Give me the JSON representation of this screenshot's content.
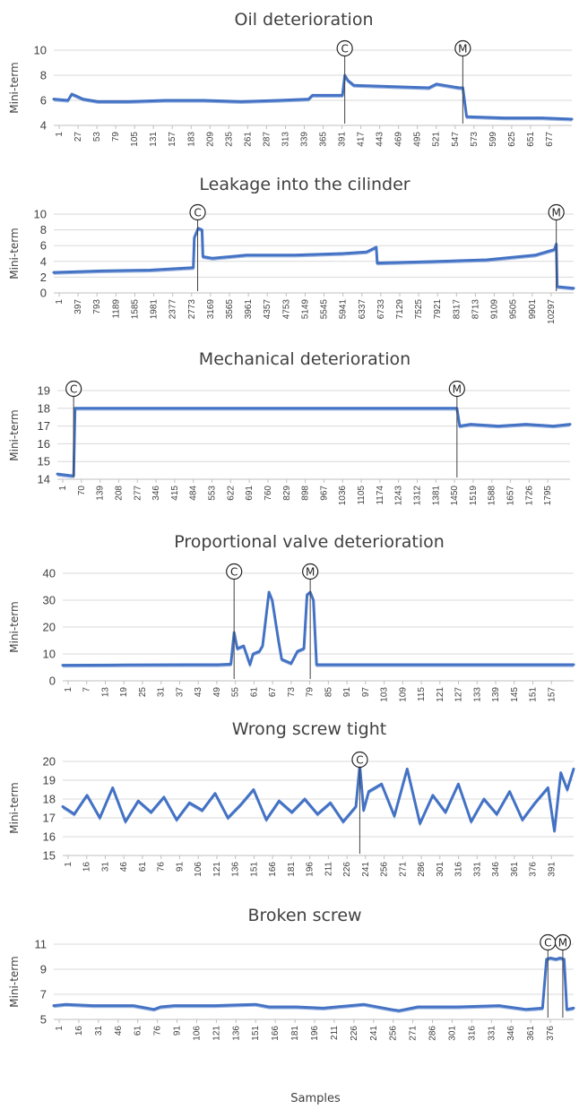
{
  "figure": {
    "x_axis_label": "Samples"
  },
  "chart_data": [
    {
      "type": "line",
      "title": "Oil deterioration",
      "ylabel": "Mini-term",
      "xlabel": "",
      "ylim": [
        4,
        10
      ],
      "yticks": [
        "4",
        "6",
        "8",
        "10"
      ],
      "x_range": [
        1,
        690
      ],
      "x_ticks": [
        "1",
        "27",
        "53",
        "79",
        "105",
        "131",
        "157",
        "183",
        "209",
        "235",
        "261",
        "287",
        "313",
        "339",
        "365",
        "391",
        "417",
        "443",
        "469",
        "495",
        "521",
        "547",
        "573",
        "599",
        "625",
        "651",
        "677"
      ],
      "grid": true,
      "series": [
        {
          "color": "#4472c4",
          "x": [
            1,
            20,
            25,
            40,
            60,
            100,
            150,
            200,
            250,
            300,
            340,
            345,
            385,
            388,
            392,
            400,
            450,
            500,
            510,
            540,
            545,
            550,
            600,
            650,
            690
          ],
          "y": [
            6.1,
            6.0,
            6.5,
            6.1,
            5.9,
            5.9,
            6.0,
            6.0,
            5.9,
            6.0,
            6.1,
            6.4,
            6.4,
            8.0,
            7.6,
            7.2,
            7.1,
            7.0,
            7.3,
            7.0,
            7.0,
            4.7,
            4.6,
            4.6,
            4.5
          ]
        }
      ],
      "markers": [
        {
          "label": "C",
          "x": 388
        },
        {
          "label": "M",
          "x": 545
        }
      ]
    },
    {
      "type": "line",
      "title": "Leakage into the cilinder",
      "ylabel": "Mini-term",
      "xlabel": "",
      "ylim": [
        0,
        10
      ],
      "yticks": [
        "0",
        "2",
        "4",
        "6",
        "8",
        "10"
      ],
      "x_range": [
        1,
        10800
      ],
      "x_ticks": [
        "1",
        "397",
        "793",
        "1189",
        "1585",
        "1981",
        "2377",
        "2773",
        "3169",
        "3565",
        "3961",
        "4357",
        "4753",
        "5149",
        "5545",
        "5941",
        "6337",
        "6733",
        "7129",
        "7525",
        "7921",
        "8317",
        "8713",
        "9109",
        "9505",
        "9901",
        "10297"
      ],
      "grid": true,
      "series": [
        {
          "color": "#4472c4",
          "x": [
            1,
            1000,
            2000,
            2900,
            2920,
            3000,
            3080,
            3100,
            3300,
            4000,
            5000,
            6000,
            6500,
            6700,
            6720,
            8000,
            9000,
            10000,
            10400,
            10440,
            10460,
            10800
          ],
          "y": [
            2.6,
            2.8,
            2.9,
            3.2,
            7.0,
            8.2,
            8.0,
            4.6,
            4.4,
            4.8,
            4.8,
            5.0,
            5.2,
            5.8,
            3.8,
            4.0,
            4.2,
            4.8,
            5.5,
            6.2,
            0.8,
            0.6
          ]
        }
      ],
      "markers": [
        {
          "label": "C",
          "x": 2990
        },
        {
          "label": "M",
          "x": 10440
        }
      ]
    },
    {
      "type": "line",
      "title": "Mechanical deterioration",
      "ylabel": "Mini-term",
      "xlabel": "",
      "ylim": [
        14,
        19
      ],
      "yticks": [
        "14",
        "15",
        "16",
        "17",
        "18",
        "19"
      ],
      "x_range": [
        1,
        1860
      ],
      "x_ticks": [
        "1",
        "70",
        "139",
        "208",
        "277",
        "346",
        "415",
        "484",
        "553",
        "622",
        "691",
        "760",
        "829",
        "898",
        "967",
        "1036",
        "1105",
        "1174",
        "1243",
        "1312",
        "1381",
        "1450",
        "1519",
        "1588",
        "1657",
        "1726",
        "1795"
      ],
      "grid": true,
      "series": [
        {
          "color": "#4472c4",
          "x": [
            1,
            50,
            60,
            65,
            200,
            400,
            600,
            800,
            1000,
            1200,
            1400,
            1450,
            1460,
            1500,
            1600,
            1700,
            1800,
            1860
          ],
          "y": [
            14.3,
            14.2,
            14.2,
            18.0,
            18.0,
            18.0,
            18.0,
            18.0,
            18.0,
            18.0,
            18.0,
            18.0,
            17.0,
            17.1,
            17.0,
            17.1,
            17.0,
            17.1
          ]
        }
      ],
      "markers": [
        {
          "label": "C",
          "x": 60
        },
        {
          "label": "M",
          "x": 1450
        }
      ]
    },
    {
      "type": "line",
      "title": "Proportional valve deterioration",
      "ylabel": "Mini-term",
      "xlabel": "",
      "ylim": [
        0,
        40
      ],
      "yticks": [
        "0",
        "10",
        "20",
        "30",
        "40"
      ],
      "x_range": [
        1,
        162
      ],
      "x_ticks": [
        "1",
        "7",
        "13",
        "19",
        "25",
        "31",
        "37",
        "43",
        "49",
        "55",
        "61",
        "67",
        "73",
        "79",
        "85",
        "91",
        "97",
        "103",
        "109",
        "115",
        "121",
        "127",
        "133",
        "139",
        "145",
        "151",
        "157"
      ],
      "grid": true,
      "series": [
        {
          "color": "#4472c4",
          "x": [
            1,
            20,
            40,
            50,
            54,
            55,
            56,
            58,
            60,
            61,
            63,
            64,
            66,
            67,
            69,
            70,
            73,
            75,
            77,
            78,
            79,
            80,
            81,
            85,
            100,
            130,
            162
          ],
          "y": [
            5.8,
            5.9,
            6.0,
            6.0,
            6.2,
            18.0,
            12.0,
            13.0,
            6.0,
            10.0,
            11.0,
            13.0,
            33.0,
            30.0,
            15.0,
            8.0,
            6.5,
            11.0,
            12.0,
            32.0,
            33.0,
            30.0,
            6.0,
            6.0,
            6.0,
            6.0,
            6.0
          ]
        }
      ],
      "markers": [
        {
          "label": "C",
          "x": 55
        },
        {
          "label": "M",
          "x": 79
        }
      ]
    },
    {
      "type": "line",
      "title": "Wrong screw tight",
      "ylabel": "Mini-term",
      "xlabel": "",
      "ylim": [
        15,
        20
      ],
      "yticks": [
        "15",
        "16",
        "17",
        "18",
        "19",
        "20"
      ],
      "x_range": [
        1,
        400
      ],
      "x_ticks": [
        "1",
        "16",
        "31",
        "46",
        "61",
        "76",
        "91",
        "106",
        "121",
        "136",
        "151",
        "166",
        "181",
        "196",
        "211",
        "226",
        "241",
        "256",
        "271",
        "286",
        "301",
        "316",
        "331",
        "346",
        "361",
        "376",
        "391"
      ],
      "grid": true,
      "series": [
        {
          "color": "#4472c4",
          "x": [
            1,
            10,
            20,
            30,
            40,
            50,
            60,
            70,
            80,
            90,
            100,
            110,
            120,
            130,
            140,
            150,
            160,
            170,
            180,
            190,
            200,
            210,
            220,
            230,
            233,
            236,
            240,
            250,
            260,
            270,
            280,
            290,
            300,
            310,
            320,
            330,
            340,
            350,
            360,
            370,
            380,
            385,
            390,
            395,
            400
          ],
          "y": [
            17.6,
            17.2,
            18.2,
            17.0,
            18.6,
            16.8,
            17.9,
            17.3,
            18.1,
            16.9,
            17.8,
            17.4,
            18.3,
            17.0,
            17.7,
            18.5,
            16.9,
            17.9,
            17.3,
            18.0,
            17.2,
            17.8,
            16.8,
            17.6,
            19.8,
            17.4,
            18.4,
            18.8,
            17.1,
            19.6,
            16.7,
            18.2,
            17.3,
            18.8,
            16.8,
            18.0,
            17.2,
            18.4,
            16.9,
            17.8,
            18.6,
            16.3,
            19.4,
            18.5,
            19.6
          ]
        }
      ],
      "markers": [
        {
          "label": "C",
          "x": 233
        }
      ]
    },
    {
      "type": "line",
      "title": "Broken screw",
      "ylabel": "Mini-term",
      "xlabel": "Samples",
      "ylim": [
        5,
        11
      ],
      "yticks": [
        "5",
        "7",
        "9",
        "11"
      ],
      "x_range": [
        1,
        385
      ],
      "x_ticks": [
        "1",
        "16",
        "31",
        "46",
        "61",
        "76",
        "91",
        "106",
        "121",
        "136",
        "151",
        "166",
        "181",
        "196",
        "211",
        "226",
        "241",
        "256",
        "271",
        "286",
        "301",
        "316",
        "331",
        "346",
        "361",
        "376"
      ],
      "grid": true,
      "series": [
        {
          "color": "#4472c4",
          "x": [
            1,
            10,
            30,
            60,
            75,
            80,
            90,
            120,
            150,
            160,
            180,
            200,
            230,
            250,
            256,
            270,
            300,
            330,
            350,
            362,
            365,
            368,
            372,
            375,
            378,
            380,
            385
          ],
          "y": [
            6.1,
            6.2,
            6.1,
            6.1,
            5.8,
            6.0,
            6.1,
            6.1,
            6.2,
            6.0,
            6.0,
            5.9,
            6.2,
            5.8,
            5.7,
            6.0,
            6.0,
            6.1,
            5.8,
            5.9,
            9.8,
            9.9,
            9.8,
            9.9,
            9.8,
            5.8,
            5.9
          ]
        }
      ],
      "markers": [
        {
          "label": "C",
          "x": 366
        },
        {
          "label": "M",
          "x": 377
        }
      ]
    }
  ]
}
